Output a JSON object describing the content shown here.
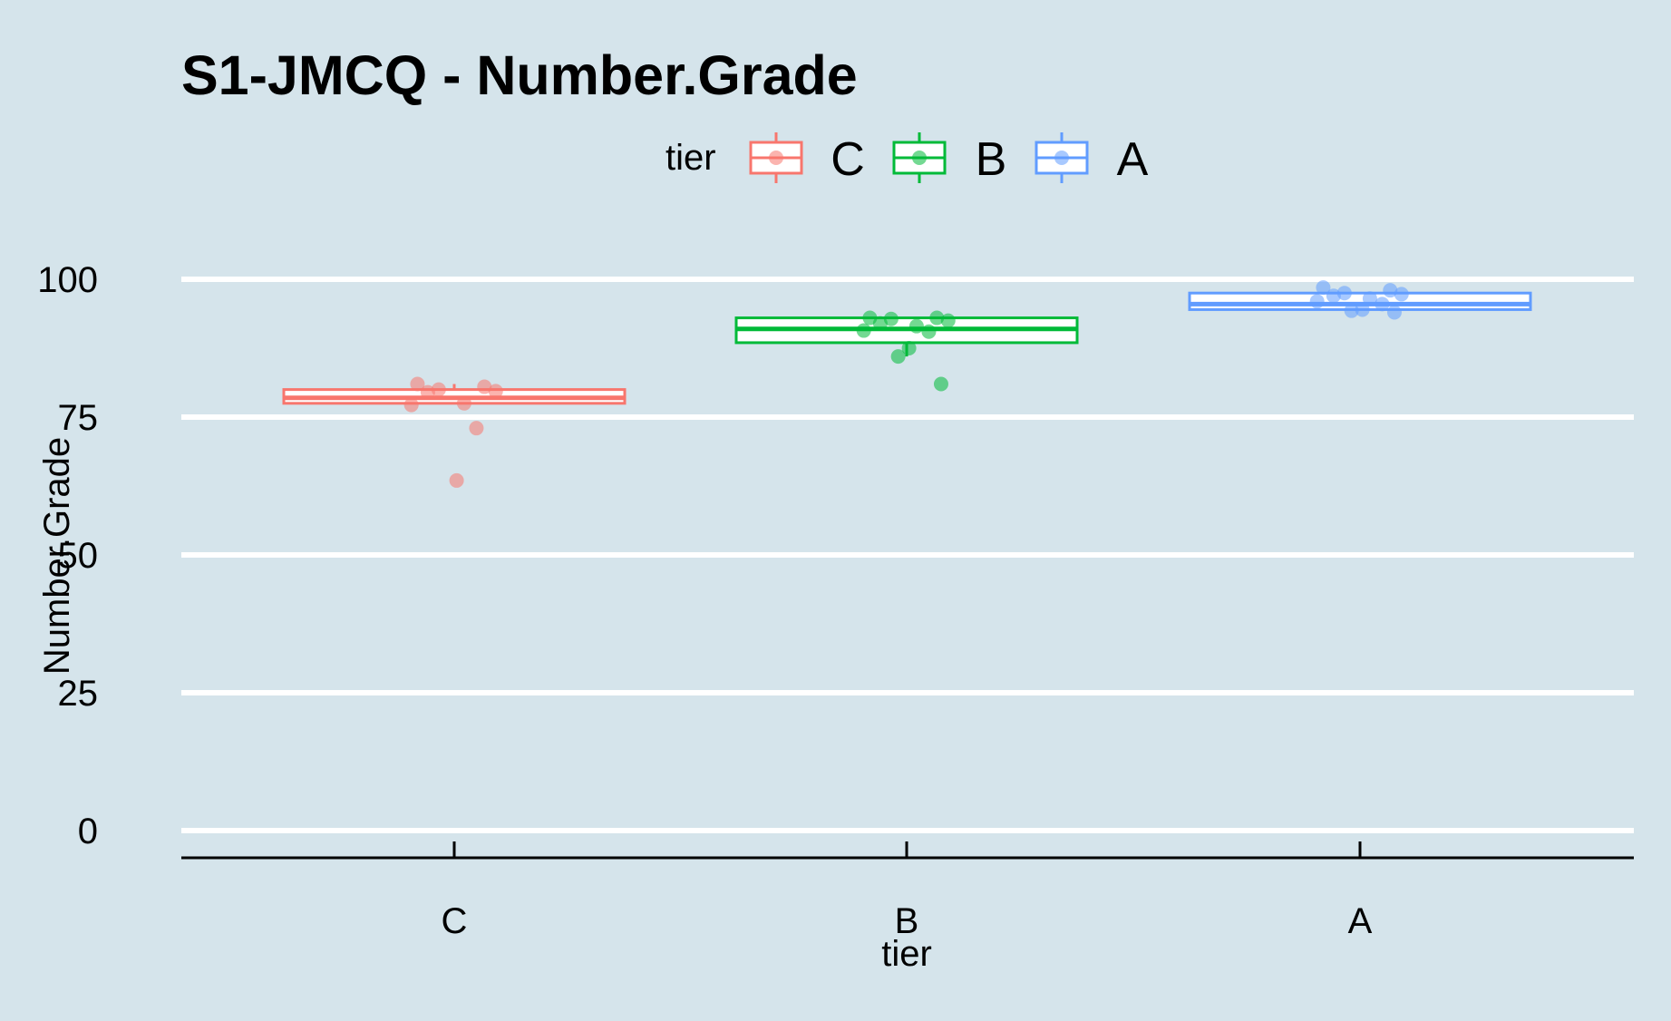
{
  "chart_data": {
    "type": "boxplot",
    "title": "S1-JMCQ - Number.Grade",
    "xlabel": "tier",
    "ylabel": "Number.Grade",
    "ylim": [
      -5,
      105
    ],
    "yticks": [
      0,
      25,
      50,
      75,
      100
    ],
    "ytick_labels": [
      "0",
      "25",
      "50",
      "75",
      "100"
    ],
    "categories": [
      "C",
      "B",
      "A"
    ],
    "legend": {
      "title": "tier",
      "position": "top",
      "entries": [
        "C",
        "B",
        "A"
      ]
    },
    "grid": "horizontal major lines",
    "colors": {
      "C": "#f8766d",
      "B": "#00ba38",
      "A": "#619cff",
      "background": "#d5e4eb",
      "grid": "#ffffff"
    },
    "series": [
      {
        "name": "C",
        "box": {
          "min": 77.5,
          "q1": 77.5,
          "median": 78.5,
          "q3": 80,
          "max": 81
        },
        "points": [
          81,
          80.5,
          80,
          79.7,
          79.5,
          77.5,
          77.2,
          73,
          63.5
        ]
      },
      {
        "name": "B",
        "box": {
          "min": 86,
          "q1": 88.5,
          "median": 91,
          "q3": 93,
          "max": 93
        },
        "points": [
          93,
          93,
          92.8,
          92.5,
          92,
          91.5,
          90.7,
          90.5,
          87.5,
          86,
          81
        ]
      },
      {
        "name": "A",
        "box": {
          "min": 94.5,
          "q1": 94.5,
          "median": 95.5,
          "q3": 97.5,
          "max": 97.5
        },
        "points": [
          98.5,
          98,
          97.5,
          97.3,
          97,
          96.5,
          96,
          95.5,
          94.5,
          94.3,
          94
        ]
      }
    ]
  }
}
